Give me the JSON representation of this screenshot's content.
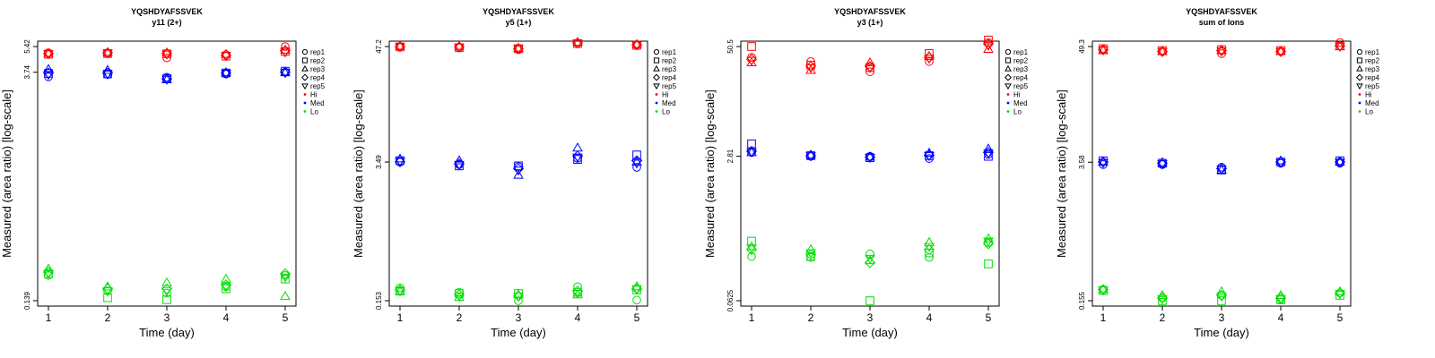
{
  "chart_data": [
    {
      "type": "scatter",
      "title": "YQSHDYAFSSVEK",
      "subtitle": "y11 (2+)",
      "xlabel": "Time (day)",
      "ylabel": "Measured (area ratio) [log-scale]",
      "y_scale": "log",
      "ylim": [
        0.139,
        5.42
      ],
      "x_ticks": [
        "1",
        "2",
        "3",
        "4",
        "5"
      ],
      "y_ticks": [
        "0.139",
        "3.74",
        "5.42"
      ],
      "legend_position": "right",
      "legend": [
        {
          "label": "rep1",
          "marker": "circle"
        },
        {
          "label": "rep2",
          "marker": "square"
        },
        {
          "label": "rep3",
          "marker": "triangle"
        },
        {
          "label": "rep4",
          "marker": "diamond"
        },
        {
          "label": "rep5",
          "marker": "triangle-down"
        },
        {
          "label": "Hi",
          "marker": "dot",
          "color": "#ff0000"
        },
        {
          "label": "Med",
          "marker": "dot",
          "color": "#0000ff"
        },
        {
          "label": "Lo",
          "marker": "dot",
          "color": "#00e000"
        }
      ],
      "series": [
        {
          "level": "Hi",
          "color": "#ff0000",
          "rep1": [
            4.95,
            4.9,
            4.6,
            4.82,
            5.42
          ],
          "rep2": [
            4.85,
            4.9,
            4.88,
            4.72,
            5.05
          ],
          "rep3": [
            4.92,
            4.98,
            4.95,
            4.85,
            5.15
          ],
          "rep4": [
            4.9,
            4.95,
            4.9,
            4.78,
            5.1
          ],
          "rep5": [
            4.88,
            4.92,
            4.85,
            4.75,
            5.0
          ]
        },
        {
          "level": "Med",
          "color": "#0000ff",
          "rep1": [
            3.5,
            3.62,
            3.48,
            3.65,
            3.75
          ],
          "rep2": [
            3.68,
            3.65,
            3.42,
            3.7,
            3.8
          ],
          "rep3": [
            3.9,
            3.85,
            3.36,
            3.72,
            3.72
          ],
          "rep4": [
            3.7,
            3.7,
            3.4,
            3.7,
            3.75
          ],
          "rep5": [
            3.62,
            3.65,
            3.38,
            3.68,
            3.72
          ]
        },
        {
          "level": "Lo",
          "color": "#00e000",
          "rep1": [
            0.2,
            0.16,
            0.155,
            0.17,
            0.2
          ],
          "rep2": [
            0.205,
            0.145,
            0.141,
            0.165,
            0.19
          ],
          "rep3": [
            0.22,
            0.17,
            0.18,
            0.19,
            0.148
          ],
          "rep4": [
            0.21,
            0.165,
            0.165,
            0.175,
            0.205
          ],
          "rep5": [
            0.205,
            0.16,
            0.16,
            0.17,
            0.195
          ]
        }
      ]
    },
    {
      "type": "scatter",
      "title": "YQSHDYAFSSVEK",
      "subtitle": "y5 (1+)",
      "xlabel": "Time (day)",
      "ylabel": "Measured (area ratio) [log-scale]",
      "y_scale": "log",
      "ylim": [
        0.153,
        47.2
      ],
      "x_ticks": [
        "1",
        "2",
        "3",
        "4",
        "5"
      ],
      "y_ticks": [
        "0.153",
        "3.49",
        "47.2"
      ],
      "legend_position": "right",
      "legend": [
        {
          "label": "rep1",
          "marker": "circle"
        },
        {
          "label": "rep2",
          "marker": "square"
        },
        {
          "label": "rep3",
          "marker": "triangle"
        },
        {
          "label": "rep4",
          "marker": "diamond"
        },
        {
          "label": "rep5",
          "marker": "triangle-down"
        },
        {
          "label": "Hi",
          "marker": "dot",
          "color": "#ff0000"
        },
        {
          "label": "Med",
          "marker": "dot",
          "color": "#0000ff"
        },
        {
          "label": "Lo",
          "marker": "dot",
          "color": "#00e000"
        }
      ],
      "series": [
        {
          "level": "Hi",
          "color": "#ff0000",
          "rep1": [
            47.2,
            46.5,
            44.0,
            51.0,
            49.0
          ],
          "rep2": [
            46.8,
            46.0,
            45.0,
            50.5,
            48.5
          ],
          "rep3": [
            47.5,
            47.5,
            45.5,
            52.0,
            49.5
          ],
          "rep4": [
            47.0,
            46.8,
            45.0,
            51.0,
            49.0
          ],
          "rep5": [
            47.0,
            46.5,
            45.0,
            51.0,
            49.0
          ]
        },
        {
          "level": "Med",
          "color": "#0000ff",
          "rep1": [
            3.49,
            3.3,
            3.15,
            3.8,
            3.1
          ],
          "rep2": [
            3.6,
            3.2,
            3.2,
            3.7,
            4.1
          ],
          "rep3": [
            3.75,
            3.6,
            2.6,
            4.8,
            3.5
          ],
          "rep4": [
            3.5,
            3.35,
            3.0,
            4.0,
            3.6
          ],
          "rep5": [
            3.55,
            3.3,
            2.9,
            3.9,
            3.4
          ]
        },
        {
          "level": "Lo",
          "color": "#00e000",
          "rep1": [
            0.205,
            0.185,
            0.153,
            0.21,
            0.155
          ],
          "rep2": [
            0.19,
            0.18,
            0.18,
            0.185,
            0.195
          ],
          "rep3": [
            0.19,
            0.165,
            0.175,
            0.175,
            0.21
          ],
          "rep4": [
            0.195,
            0.175,
            0.17,
            0.19,
            0.2
          ],
          "rep5": [
            0.19,
            0.17,
            0.17,
            0.18,
            0.2
          ]
        }
      ]
    },
    {
      "type": "scatter",
      "title": "YQSHDYAFSSVEK",
      "subtitle": "y3 (1+)",
      "xlabel": "Time (day)",
      "ylabel": "Measured (area ratio) [log-scale]",
      "y_scale": "log",
      "ylim": [
        0.0625,
        50.5
      ],
      "x_ticks": [
        "1",
        "2",
        "3",
        "4",
        "5"
      ],
      "y_ticks": [
        "0.0625",
        "2.81",
        "50.5"
      ],
      "legend_position": "right",
      "legend": [
        {
          "label": "rep1",
          "marker": "circle"
        },
        {
          "label": "rep2",
          "marker": "square"
        },
        {
          "label": "rep3",
          "marker": "triangle"
        },
        {
          "label": "rep4",
          "marker": "diamond"
        },
        {
          "label": "rep5",
          "marker": "triangle-down"
        },
        {
          "label": "Hi",
          "marker": "dot",
          "color": "#ff0000"
        },
        {
          "label": "Med",
          "marker": "dot",
          "color": "#0000ff"
        },
        {
          "label": "Lo",
          "marker": "dot",
          "color": "#00e000"
        }
      ],
      "series": [
        {
          "level": "Hi",
          "color": "#ff0000",
          "rep1": [
            38.0,
            34.0,
            26.0,
            34.0,
            56.0
          ],
          "rep2": [
            50.5,
            31.0,
            29.0,
            42.0,
            60.0
          ],
          "rep3": [
            33.0,
            27.0,
            33.0,
            39.0,
            47.0
          ],
          "rep4": [
            36.0,
            30.0,
            30.0,
            38.0,
            54.0
          ],
          "rep5": [
            35.0,
            29.0,
            29.0,
            37.0,
            52.0
          ]
        },
        {
          "level": "Med",
          "color": "#0000ff",
          "rep1": [
            3.1,
            2.81,
            2.8,
            2.65,
            2.95
          ],
          "rep2": [
            3.9,
            2.85,
            2.7,
            2.85,
            2.8
          ],
          "rep3": [
            3.1,
            2.9,
            2.75,
            3.05,
            3.4
          ],
          "rep4": [
            3.2,
            2.85,
            2.75,
            2.9,
            3.1
          ],
          "rep5": [
            3.15,
            2.83,
            2.72,
            2.85,
            3.05
          ]
        },
        {
          "level": "Lo",
          "color": "#00e000",
          "rep1": [
            0.2,
            0.196,
            0.215,
            0.195,
            0.29
          ],
          "rep2": [
            0.3,
            0.2,
            0.0625,
            0.22,
            0.165
          ],
          "rep3": [
            0.26,
            0.24,
            0.18,
            0.29,
            0.32
          ],
          "rep4": [
            0.24,
            0.21,
            0.17,
            0.24,
            0.28
          ],
          "rep5": [
            0.25,
            0.22,
            0.19,
            0.26,
            0.3
          ]
        }
      ]
    },
    {
      "type": "scatter",
      "title": "YQSHDYAFSSVEK",
      "subtitle": "sum of Ions",
      "xlabel": "Time (day)",
      "ylabel": "Measured (area ratio) [log-scale]",
      "y_scale": "log",
      "ylim": [
        0.155,
        49.3
      ],
      "x_ticks": [
        "1",
        "2",
        "3",
        "4",
        "5"
      ],
      "y_ticks": [
        "0.155",
        "3.58",
        "49.3"
      ],
      "legend_position": "right",
      "legend": [
        {
          "label": "rep1",
          "marker": "circle"
        },
        {
          "label": "rep2",
          "marker": "square"
        },
        {
          "label": "rep3",
          "marker": "triangle"
        },
        {
          "label": "rep4",
          "marker": "diamond"
        },
        {
          "label": "rep5",
          "marker": "triangle-down"
        },
        {
          "label": "Hi",
          "marker": "dot",
          "color": "#ff0000"
        },
        {
          "label": "Med",
          "marker": "dot",
          "color": "#0000ff"
        },
        {
          "label": "Lo",
          "marker": "dot",
          "color": "#00e000"
        }
      ],
      "series": [
        {
          "level": "Hi",
          "color": "#ff0000",
          "rep1": [
            46.0,
            44.0,
            42.0,
            44.0,
            54.0
          ],
          "rep2": [
            47.0,
            45.0,
            46.0,
            45.0,
            50.0
          ],
          "rep3": [
            45.0,
            44.0,
            45.0,
            44.0,
            49.3
          ],
          "rep4": [
            46.0,
            44.0,
            45.0,
            44.0,
            50.0
          ],
          "rep5": [
            45.5,
            44.0,
            44.5,
            44.0,
            49.5
          ]
        },
        {
          "level": "Med",
          "color": "#0000ff",
          "rep1": [
            3.4,
            3.4,
            3.2,
            3.5,
            3.5
          ],
          "rep2": [
            3.7,
            3.5,
            3.0,
            3.6,
            3.7
          ],
          "rep3": [
            3.6,
            3.55,
            3.0,
            3.7,
            3.6
          ],
          "rep4": [
            3.6,
            3.5,
            3.1,
            3.6,
            3.6
          ],
          "rep5": [
            3.55,
            3.45,
            3.05,
            3.55,
            3.58
          ]
        },
        {
          "level": "Lo",
          "color": "#00e000",
          "rep1": [
            0.2,
            0.165,
            0.175,
            0.16,
            0.185
          ],
          "rep2": [
            0.195,
            0.155,
            0.155,
            0.158,
            0.175
          ],
          "rep3": [
            0.2,
            0.175,
            0.19,
            0.175,
            0.19
          ],
          "rep4": [
            0.2,
            0.165,
            0.175,
            0.165,
            0.185
          ],
          "rep5": [
            0.198,
            0.162,
            0.172,
            0.163,
            0.182
          ]
        }
      ]
    }
  ]
}
